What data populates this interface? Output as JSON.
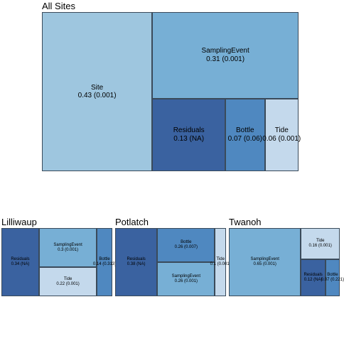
{
  "chart_data": [
    {
      "type": "treemap",
      "title": "All Sites",
      "tiles": [
        {
          "name": "Site",
          "value": 0.43,
          "label": "Site",
          "detail": "0.43 (0.001)",
          "color": "#9ec6df"
        },
        {
          "name": "SamplingEvent",
          "value": 0.31,
          "label": "SamplingEvent",
          "detail": "0.31 (0.001)",
          "color": "#77afd5"
        },
        {
          "name": "Residuals",
          "value": 0.13,
          "label": "Residuals",
          "detail": "0.13 (NA)",
          "color": "#3a62a0"
        },
        {
          "name": "Bottle",
          "value": 0.07,
          "label": "Bottle",
          "detail": "0.07 (0.06)",
          "color": "#4f88c0"
        },
        {
          "name": "Tide",
          "value": 0.06,
          "label": "Tide",
          "detail": "0.06 (0.001)",
          "color": "#c4d9ec"
        }
      ]
    },
    {
      "type": "treemap",
      "title": "Lilliwaup",
      "tiles": [
        {
          "name": "Residuals",
          "value": 0.34,
          "label": "Residuals",
          "detail": "0.34 (NA)",
          "color": "#3a62a0"
        },
        {
          "name": "SamplingEvent",
          "value": 0.3,
          "label": "SamplingEvent",
          "detail": "0.3 (0.001)",
          "color": "#77afd5"
        },
        {
          "name": "Tide",
          "value": 0.22,
          "label": "Tide",
          "detail": "0.22 (0.001)",
          "color": "#c4d9ec"
        },
        {
          "name": "Bottle",
          "value": 0.14,
          "label": "Bottle",
          "detail": "0.14 (0.313)",
          "color": "#4f88c0"
        }
      ]
    },
    {
      "type": "treemap",
      "title": "Potlatch",
      "tiles": [
        {
          "name": "Residuals",
          "value": 0.38,
          "label": "Residuals",
          "detail": "0.38 (NA)",
          "color": "#3a62a0"
        },
        {
          "name": "Bottle",
          "value": 0.26,
          "label": "Bottle",
          "detail": "0.26 (0.007)",
          "color": "#4f88c0"
        },
        {
          "name": "SamplingEvent",
          "value": 0.26,
          "label": "SamplingEvent",
          "detail": "0.26 (0.001)",
          "color": "#77afd5"
        },
        {
          "name": "Tide",
          "value": 0.1,
          "label": "Tide",
          "detail": "0.1 (0.001)",
          "color": "#c4d9ec"
        }
      ]
    },
    {
      "type": "treemap",
      "title": "Twanoh",
      "tiles": [
        {
          "name": "SamplingEvent",
          "value": 0.65,
          "label": "SamplingEvent",
          "detail": "0.65 (0.001)",
          "color": "#77afd5"
        },
        {
          "name": "Tide",
          "value": 0.16,
          "label": "Tide",
          "detail": "0.16 (0.001)",
          "color": "#c4d9ec"
        },
        {
          "name": "Residuals",
          "value": 0.12,
          "label": "Residuals",
          "detail": "0.12 (NA)",
          "color": "#3a62a0"
        },
        {
          "name": "Bottle",
          "value": 0.07,
          "label": "Bottle",
          "detail": "0.07 (0.221)",
          "color": "#4f88c0"
        }
      ]
    }
  ]
}
